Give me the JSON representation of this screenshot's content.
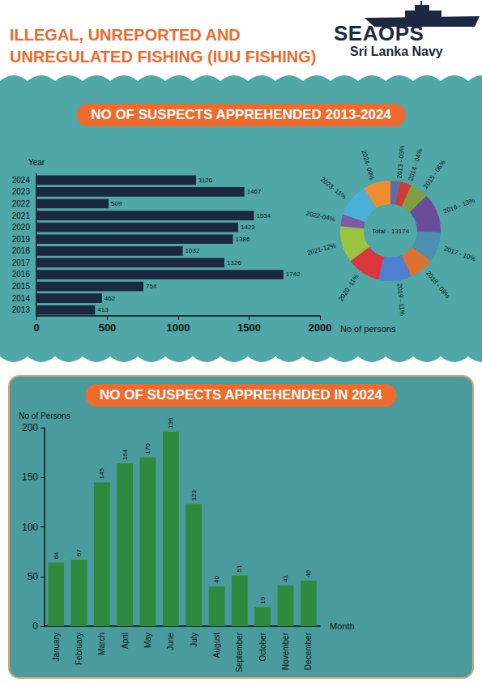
{
  "header": {
    "title": "ILLEGAL, UNREPORTED AND UNREGULATED FISHING (IUU FISHING)",
    "logo": "SEAOPS",
    "logo_subtitle": "Sri Lanka Navy"
  },
  "chart_data": [
    {
      "type": "bar",
      "title": "NO OF SUSPECTS APPREHENDED 2013-2024",
      "orientation": "horizontal",
      "categories": [
        "2013",
        "2014",
        "2015",
        "2016",
        "2017",
        "2018",
        "2019",
        "2020",
        "2021",
        "2022",
        "2023",
        "2024"
      ],
      "values": [
        413,
        462,
        754,
        1742,
        1326,
        1032,
        1386,
        1423,
        1534,
        509,
        1467,
        1126
      ],
      "color": "#1c2841",
      "xlim": [
        0,
        2000
      ],
      "xticks": [
        0,
        500,
        1000,
        1500,
        2000
      ],
      "xlabel": "No of persons",
      "ylabel": "Year",
      "data_labels": true,
      "grid": false
    },
    {
      "type": "pie",
      "values": [
        3,
        4,
        6,
        13,
        10,
        8,
        11,
        11,
        12,
        4,
        11,
        9
      ],
      "value_labels": [
        "2013 - 03%",
        "2014 - 04%",
        "2015 - 06%",
        "2016 - 13%",
        "2017 - 10%",
        "2018 - 08%",
        "2019 - 11%",
        "2020 -11%",
        "2021-12%",
        "2022-04%",
        "2023- 11%",
        "2024- 09%"
      ],
      "colors": [
        "#5a6fa8",
        "#d03a3a",
        "#7fa03c",
        "#6b4c9a",
        "#4a90b0",
        "#e07030",
        "#4f7fd0",
        "#d9363e",
        "#9bc43c",
        "#7b5ba8",
        "#4ab0d8",
        "#f08c30"
      ],
      "annotations": [
        "Total - 13174"
      ],
      "data_labels": true
    },
    {
      "type": "bar",
      "title": "NO OF SUSPECTS APPREHENDED IN 2024",
      "categories": [
        "January",
        "February",
        "March",
        "April",
        "May",
        "June",
        "July",
        "August",
        "September",
        "October",
        "November",
        "December"
      ],
      "values": [
        64,
        67,
        145,
        164,
        170,
        196,
        123,
        40,
        51,
        19,
        41,
        46
      ],
      "color": "#2e8b3e",
      "ylim": [
        0,
        200
      ],
      "yticks": [
        0,
        50,
        100,
        150,
        200
      ],
      "xlabel": "Month",
      "ylabel": "No of Persons",
      "data_labels": true,
      "grid": false
    }
  ]
}
